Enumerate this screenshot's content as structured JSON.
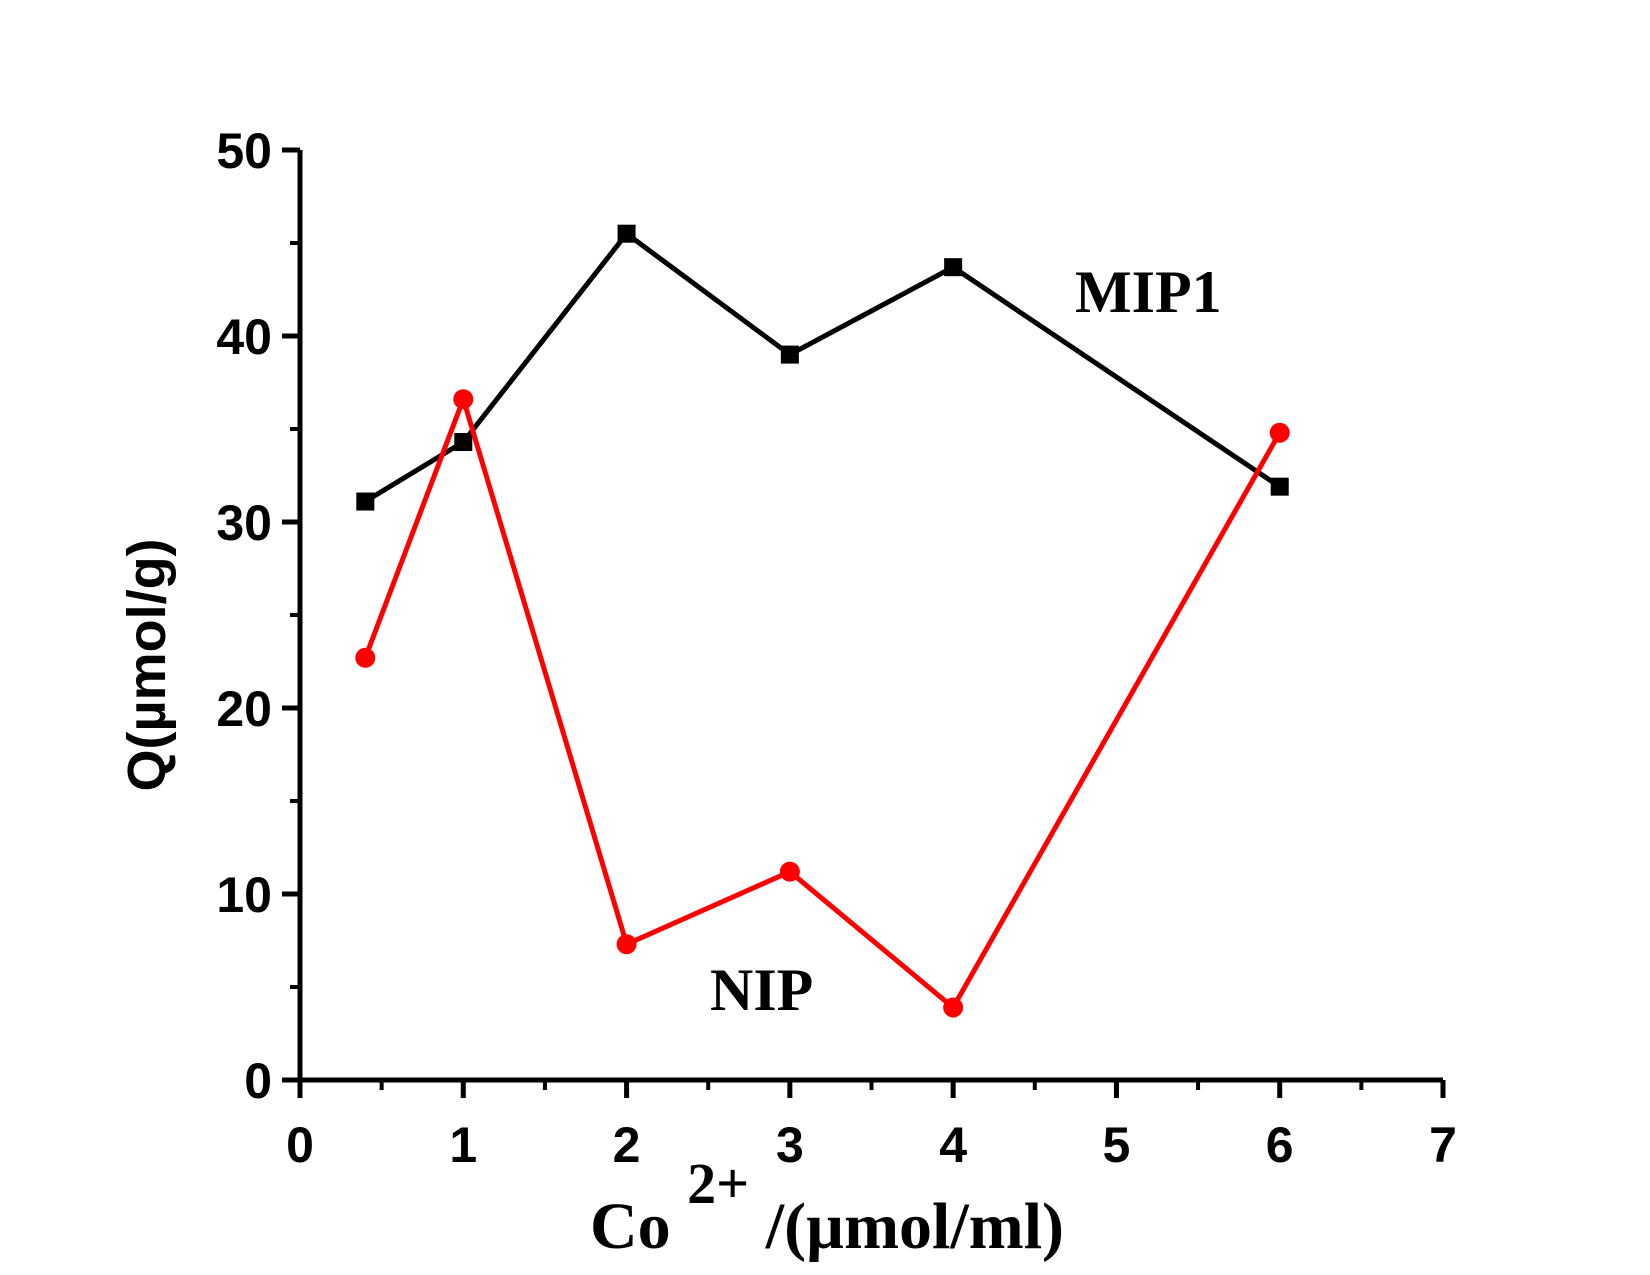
{
  "chart_data": {
    "type": "line",
    "title": "",
    "xlabel": {
      "base": "Co",
      "superscript": "2+",
      "suffix": "/(µmol/ml)"
    },
    "ylabel": "Q(µmol/g)",
    "xlim": [
      0,
      7
    ],
    "ylim": [
      0,
      50
    ],
    "x_ticks": [
      0,
      1,
      2,
      3,
      4,
      5,
      6,
      7
    ],
    "y_ticks": [
      0,
      10,
      20,
      30,
      40,
      50
    ],
    "grid": false,
    "legend": "none",
    "series": [
      {
        "name": "MIP1",
        "color": "#000000",
        "marker": "square",
        "x": [
          0.4,
          1,
          2,
          3,
          4,
          6
        ],
        "y": [
          31.1,
          34.3,
          45.5,
          39.0,
          43.7,
          31.9
        ]
      },
      {
        "name": "NIP",
        "color": "#ff0000",
        "marker": "circle",
        "x": [
          0.4,
          1,
          2,
          3,
          4,
          6
        ],
        "y": [
          22.7,
          36.6,
          7.3,
          11.2,
          3.9,
          34.8
        ]
      }
    ]
  }
}
